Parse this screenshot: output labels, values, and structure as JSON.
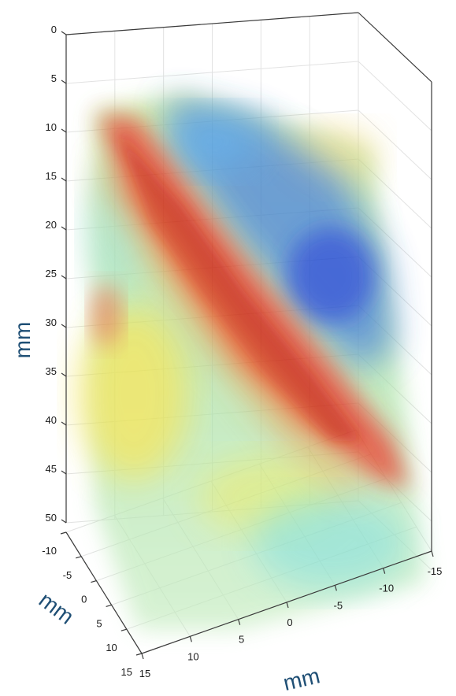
{
  "chart_data": {
    "type": "volume",
    "title": "",
    "colormap": "jet",
    "axes": {
      "z": {
        "label": "mm",
        "ticks": [
          0,
          5,
          10,
          15,
          20,
          25,
          30,
          35,
          40,
          45,
          50
        ],
        "range": [
          0,
          50
        ],
        "direction": "down"
      },
      "y": {
        "label": "mm",
        "ticks": [
          -10,
          -5,
          0,
          5,
          10,
          15
        ],
        "range": [
          -10,
          15
        ]
      },
      "x": {
        "label": "mm",
        "ticks": [
          15,
          10,
          5,
          0,
          -5,
          -10,
          -15
        ],
        "range": [
          15,
          -15
        ]
      }
    },
    "grid": true,
    "legend": "none",
    "volume_data": {
      "depth_extent_mm": [
        8,
        53
      ],
      "features": [
        {
          "name": "high band (red)",
          "depth_top_mm": 9,
          "depth_bottom_mm": 47,
          "level": "high"
        },
        {
          "name": "low band (blue)",
          "depth_top_mm": 10,
          "depth_bottom_mm": 36,
          "level": "low"
        },
        {
          "name": "background (yellow-green)",
          "level": "mid"
        }
      ]
    }
  }
}
